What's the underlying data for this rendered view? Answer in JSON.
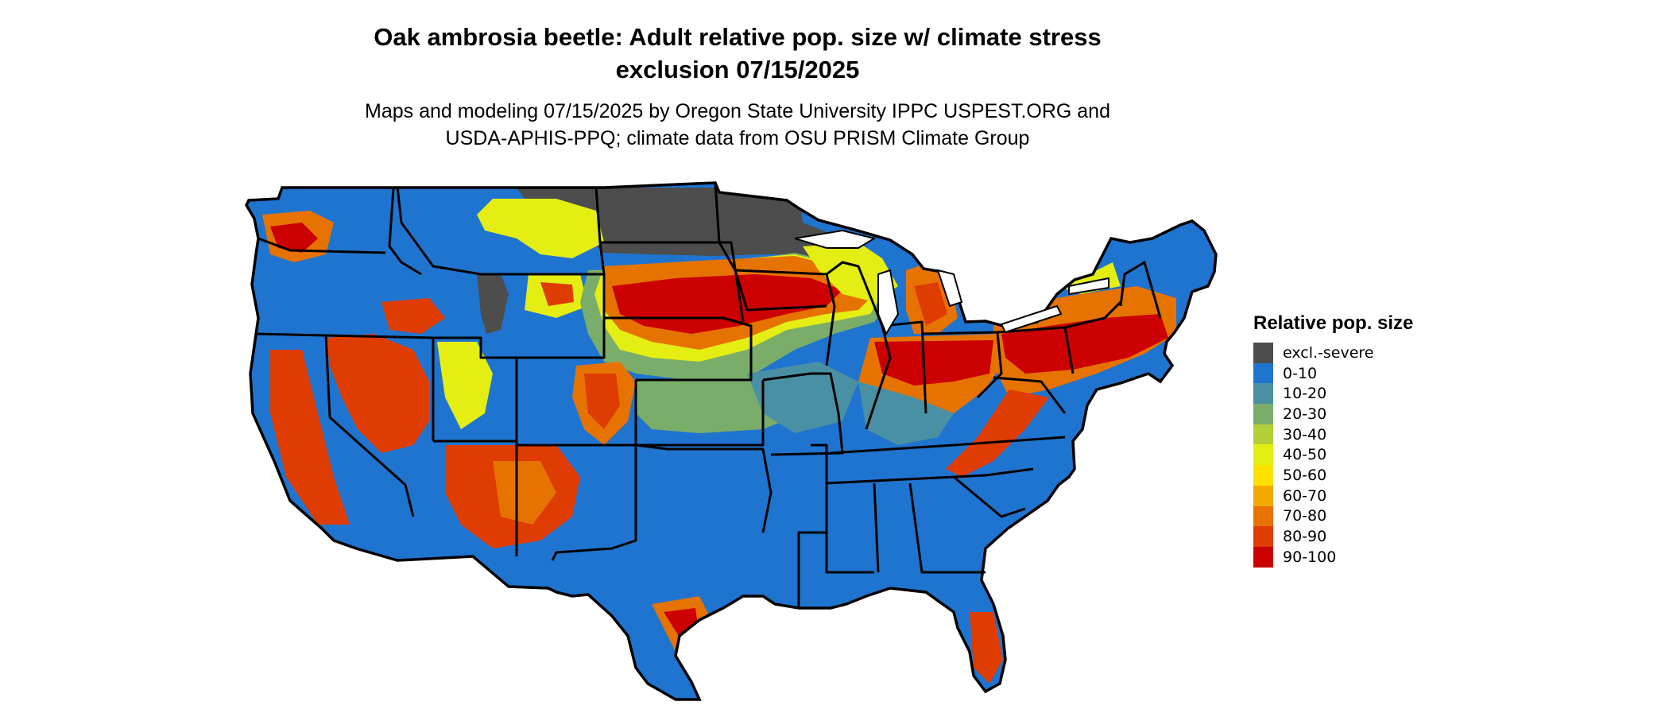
{
  "title_line1": "Oak ambrosia beetle: Adult relative pop. size w/ climate stress",
  "title_line2": "exclusion 07/15/2025",
  "subtitle_line1": "Maps and modeling 07/15/2025 by Oregon State University IPPC USPEST.ORG and",
  "subtitle_line2": "USDA-APHIS-PPQ; climate data from OSU PRISM Climate Group",
  "legend": {
    "title": "Relative pop. size",
    "items": [
      {
        "label": "excl.-severe",
        "color": "#4d4d4d"
      },
      {
        "label": "0-10",
        "color": "#1f74cf"
      },
      {
        "label": "10-20",
        "color": "#4a90a4"
      },
      {
        "label": "20-30",
        "color": "#7aad6a"
      },
      {
        "label": "30-40",
        "color": "#b2cf3a"
      },
      {
        "label": "40-50",
        "color": "#e4ee12"
      },
      {
        "label": "50-60",
        "color": "#ffe000"
      },
      {
        "label": "60-70",
        "color": "#f3aa00"
      },
      {
        "label": "70-80",
        "color": "#e67300"
      },
      {
        "label": "80-90",
        "color": "#de3c00"
      },
      {
        "label": "90-100",
        "color": "#cc0000"
      }
    ]
  }
}
